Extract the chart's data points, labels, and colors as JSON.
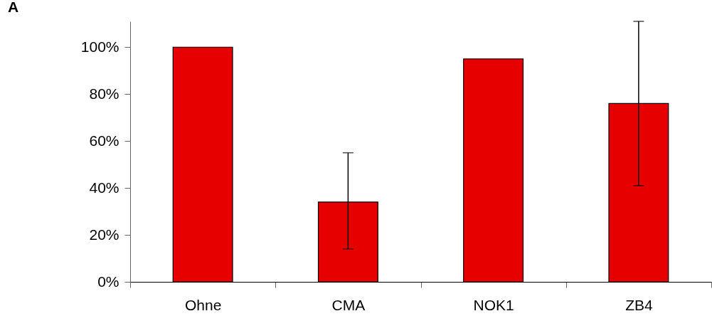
{
  "chart_data": {
    "type": "bar",
    "title": "A",
    "categories": [
      "Ohne",
      "CMA",
      "NOK1",
      "ZB4"
    ],
    "values": [
      100,
      34,
      95,
      76
    ],
    "errors": [
      null,
      [
        14,
        55
      ],
      null,
      [
        41,
        111
      ]
    ],
    "color": "#e60000",
    "ylim": [
      0,
      111
    ],
    "yticks": [
      {
        "value": 0,
        "label": "0%"
      },
      {
        "value": 20,
        "label": "20%"
      },
      {
        "value": 40,
        "label": "40%"
      },
      {
        "value": 60,
        "label": "60%"
      },
      {
        "value": 80,
        "label": "80%"
      },
      {
        "value": 100,
        "label": "100%"
      }
    ],
    "grid": false
  }
}
